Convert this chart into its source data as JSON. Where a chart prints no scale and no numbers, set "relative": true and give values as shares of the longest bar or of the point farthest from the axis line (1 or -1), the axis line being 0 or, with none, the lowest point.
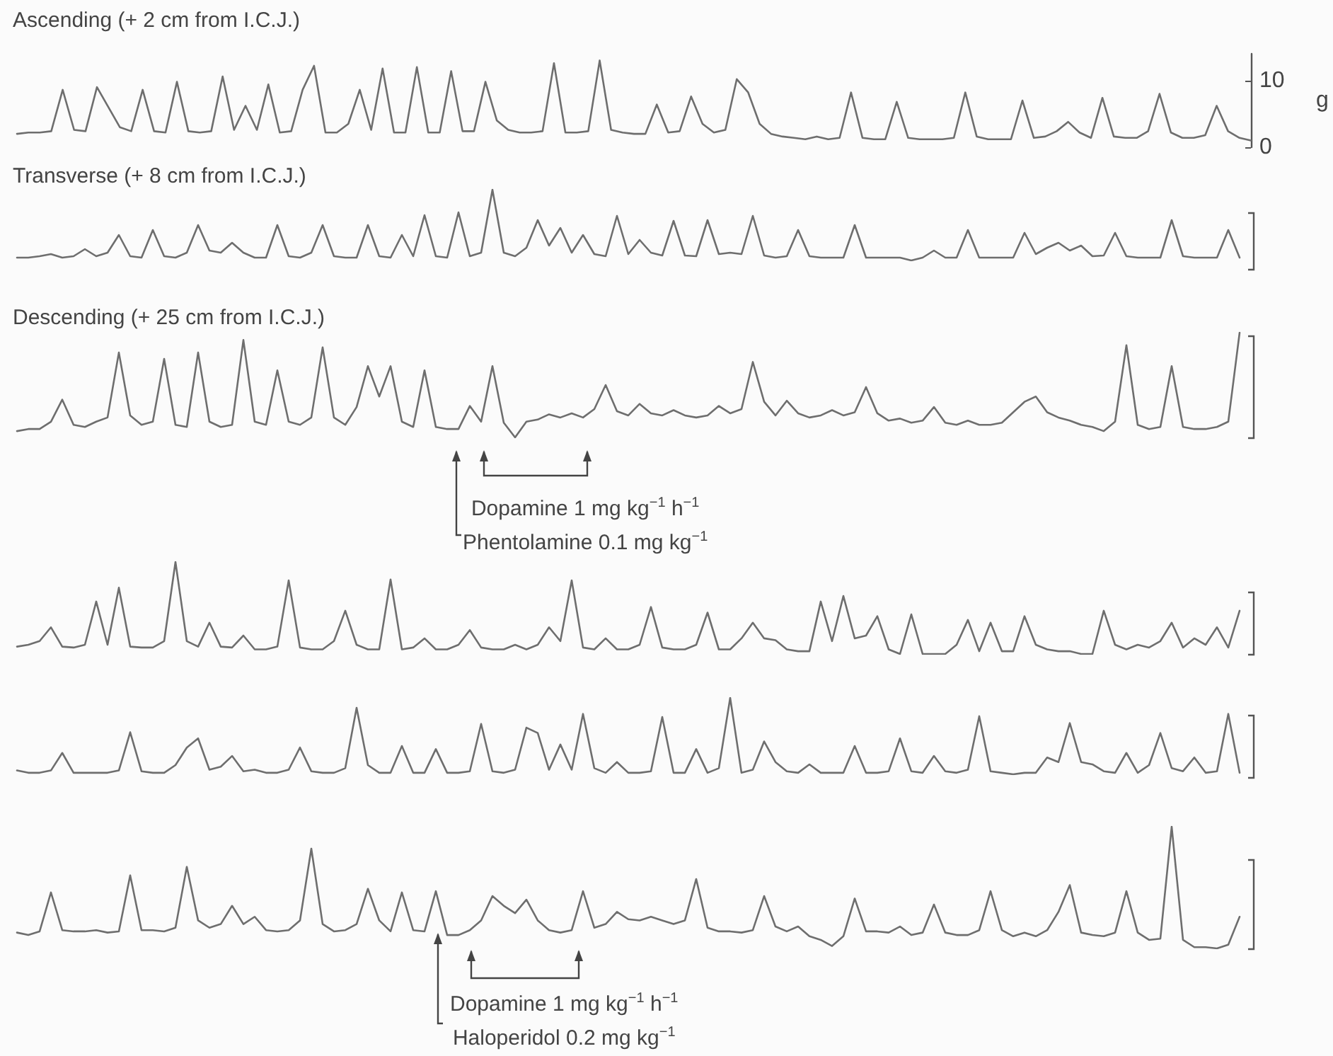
{
  "chart_data": [
    {
      "type": "line",
      "title": "Ascending (+ 2 cm from I.C.J.)",
      "ylabel": "g",
      "color": "#6e6e6e",
      "ylim": [
        0,
        14
      ],
      "yticks": [
        0,
        10
      ],
      "categories": [
        null,
        null,
        null,
        null,
        null,
        null,
        null,
        null,
        null,
        null,
        null,
        null,
        null,
        null,
        null,
        null,
        null,
        null,
        null,
        null,
        null,
        null,
        null,
        null,
        null,
        null,
        null,
        null,
        null,
        null,
        null,
        null,
        null,
        null,
        null,
        null,
        null,
        null,
        null,
        null,
        null,
        null,
        null,
        null,
        null,
        null,
        null,
        null,
        null,
        null,
        null,
        null,
        null,
        null,
        null,
        null,
        null,
        null,
        null,
        null,
        null,
        null,
        null,
        null,
        null,
        null,
        null,
        null,
        null,
        null,
        null,
        null,
        null,
        null,
        null,
        null,
        null,
        null,
        null,
        null,
        null,
        null,
        null,
        null,
        null,
        null,
        null,
        null,
        null,
        null,
        null,
        null,
        null,
        null,
        null,
        null,
        null,
        null,
        null,
        null,
        null,
        null,
        null,
        null,
        null,
        null,
        null,
        null,
        null
      ],
      "values": [
        2.0,
        2.2,
        2.2,
        2.4,
        8.6,
        2.6,
        2.4,
        9,
        6,
        3,
        2.4,
        8.6,
        2.4,
        2.2,
        9.8,
        2.4,
        2.2,
        2.4,
        10.6,
        2.6,
        6.2,
        2.6,
        9.4,
        2.2,
        2.4,
        8.6,
        12.2,
        2.2,
        2.2,
        3.5,
        8.6,
        2.6,
        11.8,
        2.2,
        2.2,
        12,
        2.2,
        2.2,
        11.4,
        2.4,
        2.4,
        9.8,
        4,
        2.6,
        2.2,
        2.2,
        2.4,
        12.6,
        2.2,
        2.2,
        2.4,
        13,
        2.6,
        2.2,
        2,
        2,
        6.4,
        2.2,
        2.4,
        7.6,
        3.5,
        2.2,
        2.6,
        10.2,
        8.2,
        3.5,
        2,
        1.6,
        1.4,
        1.2,
        1.6,
        1.2,
        1.4,
        8.2,
        1.4,
        1.2,
        1.2,
        6.8,
        1.4,
        1.2,
        1.2,
        1.2,
        1.4,
        8.2,
        1.6,
        1.2,
        1.2,
        1.2,
        7,
        1.4,
        1.6,
        2.4,
        3.8,
        2.2,
        1.4,
        7.4,
        1.6,
        1.4,
        1.4,
        2.4,
        8,
        2.2,
        1.4,
        1.4,
        1.8,
        6.2,
        2.4,
        1.4,
        1.0
      ]
    },
    {
      "type": "line",
      "title": "Transverse (+ 8 cm from I.C.J.)",
      "color": "#6e6e6e",
      "relative": true,
      "categories": [
        null,
        null,
        null,
        null,
        null,
        null,
        null,
        null,
        null,
        null,
        null,
        null,
        null,
        null,
        null,
        null,
        null,
        null,
        null,
        null,
        null,
        null,
        null,
        null,
        null,
        null,
        null,
        null,
        null,
        null,
        null,
        null,
        null,
        null,
        null,
        null,
        null,
        null,
        null,
        null,
        null,
        null,
        null,
        null,
        null,
        null,
        null,
        null,
        null,
        null,
        null,
        null,
        null,
        null,
        null,
        null,
        null,
        null,
        null,
        null,
        null,
        null,
        null,
        null,
        null,
        null,
        null,
        null,
        null,
        null,
        null,
        null,
        null,
        null,
        null,
        null,
        null,
        null,
        null,
        null,
        null,
        null,
        null,
        null,
        null,
        null,
        null,
        null,
        null,
        null,
        null,
        null,
        null,
        null,
        null,
        null,
        null,
        null,
        null,
        null,
        null,
        null,
        null,
        null,
        null,
        null,
        null,
        null,
        null
      ],
      "values": [
        0.04,
        0.04,
        0.06,
        0.09,
        0.04,
        0.06,
        0.16,
        0.06,
        0.11,
        0.36,
        0.06,
        0.04,
        0.43,
        0.06,
        0.04,
        0.11,
        0.5,
        0.14,
        0.11,
        0.25,
        0.11,
        0.04,
        0.04,
        0.5,
        0.06,
        0.04,
        0.11,
        0.5,
        0.06,
        0.04,
        0.04,
        0.5,
        0.06,
        0.04,
        0.36,
        0.06,
        0.64,
        0.06,
        0.04,
        0.68,
        0.06,
        0.11,
        1,
        0.11,
        0.06,
        0.18,
        0.57,
        0.21,
        0.46,
        0.11,
        0.36,
        0.09,
        0.06,
        0.63,
        0.09,
        0.29,
        0.11,
        0.07,
        0.56,
        0.07,
        0.06,
        0.57,
        0.09,
        0.11,
        0.09,
        0.63,
        0.07,
        0.04,
        0.06,
        0.43,
        0.06,
        0.04,
        0.04,
        0.04,
        0.5,
        0.04,
        0.04,
        0.04,
        0.04,
        0,
        0.04,
        0.14,
        0.04,
        0.04,
        0.43,
        0.04,
        0.04,
        0.04,
        0.04,
        0.39,
        0.09,
        0.18,
        0.25,
        0.14,
        0.21,
        0.06,
        0.07,
        0.39,
        0.06,
        0.04,
        0.04,
        0.04,
        0.57,
        0.06,
        0.04,
        0.04,
        0.04,
        0.43,
        0.04
      ]
    },
    {
      "type": "line",
      "title": "Descending (+ 25 cm from I.C.J.)",
      "color": "#6e6e6e",
      "relative": true,
      "annotations": [
        "Dopamine 1 mg kg$^{−1}$ h$^{−1}$",
        "Phentolamine 0.1 mg kg$^{−1}$"
      ],
      "categories": [
        null,
        null,
        null,
        null,
        null,
        null,
        null,
        null,
        null,
        null,
        null,
        null,
        null,
        null,
        null,
        null,
        null,
        null,
        null,
        null,
        null,
        null,
        null,
        null,
        null,
        null,
        null,
        null,
        null,
        null,
        null,
        null,
        null,
        null,
        null,
        null,
        null,
        null,
        null,
        null,
        null,
        null,
        null,
        null,
        null,
        null,
        null,
        null,
        null,
        null,
        null,
        null,
        null,
        null,
        null,
        null,
        null,
        null,
        null,
        null,
        null,
        null,
        null,
        null,
        null,
        null,
        null,
        null,
        null,
        null,
        null,
        null,
        null,
        null,
        null,
        null,
        null,
        null,
        null,
        null,
        null,
        null,
        null,
        null,
        null,
        null,
        null,
        null,
        null,
        null,
        null,
        null,
        null,
        null,
        null,
        null,
        null,
        null,
        null,
        null,
        null,
        null,
        null,
        null,
        null,
        null,
        null,
        null,
        null
      ],
      "values": [
        0.06,
        0.08,
        0.08,
        0.15,
        0.36,
        0.12,
        0.1,
        0.15,
        0.19,
        0.81,
        0.21,
        0.12,
        0.15,
        0.75,
        0.12,
        0.1,
        0.81,
        0.15,
        0.1,
        0.12,
        0.93,
        0.15,
        0.12,
        0.64,
        0.15,
        0.12,
        0.19,
        0.86,
        0.19,
        0.12,
        0.29,
        0.68,
        0.39,
        0.68,
        0.15,
        0.1,
        0.64,
        0.1,
        0.08,
        0.08,
        0.3,
        0.15,
        0.68,
        0.14,
        0,
        0.15,
        0.17,
        0.22,
        0.19,
        0.23,
        0.19,
        0.27,
        0.5,
        0.25,
        0.21,
        0.32,
        0.23,
        0.21,
        0.26,
        0.21,
        0.19,
        0.21,
        0.3,
        0.23,
        0.27,
        0.72,
        0.34,
        0.21,
        0.35,
        0.23,
        0.19,
        0.21,
        0.26,
        0.21,
        0.24,
        0.48,
        0.23,
        0.16,
        0.18,
        0.14,
        0.16,
        0.29,
        0.14,
        0.12,
        0.16,
        0.12,
        0.12,
        0.14,
        0.24,
        0.34,
        0.39,
        0.24,
        0.19,
        0.16,
        0.12,
        0.1,
        0.06,
        0.15,
        0.88,
        0.12,
        0.08,
        0.1,
        0.68,
        0.1,
        0.08,
        0.08,
        0.1,
        0.15,
        1
      ]
    },
    {
      "type": "line",
      "color": "#6e6e6e",
      "relative": true,
      "categories": [
        null,
        null,
        null,
        null,
        null,
        null,
        null,
        null,
        null,
        null,
        null,
        null,
        null,
        null,
        null,
        null,
        null,
        null,
        null,
        null,
        null,
        null,
        null,
        null,
        null,
        null,
        null,
        null,
        null,
        null,
        null,
        null,
        null,
        null,
        null,
        null,
        null,
        null,
        null,
        null,
        null,
        null,
        null,
        null,
        null,
        null,
        null,
        null,
        null,
        null,
        null,
        null,
        null,
        null,
        null,
        null,
        null,
        null,
        null,
        null,
        null,
        null,
        null,
        null,
        null,
        null,
        null,
        null,
        null,
        null,
        null,
        null,
        null,
        null,
        null,
        null,
        null,
        null,
        null,
        null,
        null,
        null,
        null,
        null,
        null,
        null,
        null,
        null,
        null,
        null,
        null,
        null,
        null,
        null,
        null,
        null,
        null,
        null,
        null,
        null,
        null,
        null,
        null,
        null,
        null,
        null,
        null,
        null,
        null
      ],
      "values": [
        0.08,
        0.1,
        0.14,
        0.29,
        0.08,
        0.07,
        0.1,
        0.57,
        0.1,
        0.72,
        0.08,
        0.07,
        0.07,
        0.14,
        1,
        0.14,
        0.08,
        0.34,
        0.08,
        0.07,
        0.2,
        0.05,
        0.05,
        0.08,
        0.8,
        0.07,
        0.05,
        0.05,
        0.14,
        0.47,
        0.1,
        0.05,
        0.05,
        0.81,
        0.05,
        0.07,
        0.17,
        0.05,
        0.05,
        0.1,
        0.26,
        0.07,
        0.05,
        0.05,
        0.1,
        0.05,
        0.1,
        0.29,
        0.14,
        0.8,
        0.07,
        0.05,
        0.17,
        0.05,
        0.05,
        0.1,
        0.51,
        0.07,
        0.05,
        0.05,
        0.1,
        0.45,
        0.05,
        0.05,
        0.17,
        0.34,
        0.17,
        0.15,
        0.05,
        0.03,
        0.03,
        0.57,
        0.14,
        0.63,
        0.17,
        0.2,
        0.41,
        0.05,
        0,
        0.43,
        0,
        0,
        0,
        0.1,
        0.37,
        0.03,
        0.34,
        0.03,
        0.03,
        0.41,
        0.1,
        0.05,
        0.03,
        0.03,
        0,
        0,
        0.47,
        0.1,
        0.05,
        0.1,
        0.07,
        0.14,
        0.34,
        0.07,
        0.17,
        0.1,
        0.29,
        0.07,
        0.47
      ]
    },
    {
      "type": "line",
      "color": "#6e6e6e",
      "relative": true,
      "categories": [
        null,
        null,
        null,
        null,
        null,
        null,
        null,
        null,
        null,
        null,
        null,
        null,
        null,
        null,
        null,
        null,
        null,
        null,
        null,
        null,
        null,
        null,
        null,
        null,
        null,
        null,
        null,
        null,
        null,
        null,
        null,
        null,
        null,
        null,
        null,
        null,
        null,
        null,
        null,
        null,
        null,
        null,
        null,
        null,
        null,
        null,
        null,
        null,
        null,
        null,
        null,
        null,
        null,
        null,
        null,
        null,
        null,
        null,
        null,
        null,
        null,
        null,
        null,
        null,
        null,
        null,
        null,
        null,
        null,
        null,
        null,
        null,
        null,
        null,
        null,
        null,
        null,
        null,
        null,
        null,
        null,
        null,
        null,
        null,
        null,
        null,
        null,
        null,
        null,
        null,
        null,
        null,
        null,
        null,
        null,
        null,
        null,
        null,
        null,
        null,
        null,
        null,
        null,
        null,
        null,
        null,
        null,
        null,
        null
      ],
      "values": [
        0.05,
        0.02,
        0.02,
        0.05,
        0.28,
        0.02,
        0.02,
        0.02,
        0.02,
        0.05,
        0.55,
        0.04,
        0.02,
        0.02,
        0.12,
        0.35,
        0.47,
        0.06,
        0.1,
        0.24,
        0.04,
        0.06,
        0.02,
        0.02,
        0.06,
        0.35,
        0.04,
        0.02,
        0.02,
        0.08,
        0.87,
        0.12,
        0.02,
        0.02,
        0.37,
        0.02,
        0.02,
        0.33,
        0.02,
        0.02,
        0.04,
        0.66,
        0.04,
        0.02,
        0.06,
        0.61,
        0.54,
        0.06,
        0.39,
        0.06,
        0.79,
        0.08,
        0.02,
        0.16,
        0.02,
        0.02,
        0.04,
        0.75,
        0.02,
        0.02,
        0.33,
        0.02,
        0.08,
        1,
        0.02,
        0.06,
        0.43,
        0.16,
        0.04,
        0.02,
        0.13,
        0.02,
        0.02,
        0.02,
        0.37,
        0.02,
        0.02,
        0.04,
        0.47,
        0.04,
        0.02,
        0.24,
        0.04,
        0.02,
        0.06,
        0.76,
        0.04,
        0.02,
        0,
        0.02,
        0.02,
        0.22,
        0.16,
        0.67,
        0.16,
        0.13,
        0.04,
        0.02,
        0.28,
        0.02,
        0.12,
        0.54,
        0.08,
        0.04,
        0.22,
        0.02,
        0.04,
        0.79,
        0.02
      ]
    },
    {
      "type": "line",
      "color": "#6e6e6e",
      "relative": true,
      "annotations": [
        "Dopamine 1 mg kg$^{−1}$ h$^{−1}$",
        "Haloperidol 0.2 mg kg$^{−1}$"
      ],
      "categories": [
        null,
        null,
        null,
        null,
        null,
        null,
        null,
        null,
        null,
        null,
        null,
        null,
        null,
        null,
        null,
        null,
        null,
        null,
        null,
        null,
        null,
        null,
        null,
        null,
        null,
        null,
        null,
        null,
        null,
        null,
        null,
        null,
        null,
        null,
        null,
        null,
        null,
        null,
        null,
        null,
        null,
        null,
        null,
        null,
        null,
        null,
        null,
        null,
        null,
        null,
        null,
        null,
        null,
        null,
        null,
        null,
        null,
        null,
        null,
        null,
        null,
        null,
        null,
        null,
        null,
        null,
        null,
        null,
        null,
        null,
        null,
        null,
        null,
        null,
        null,
        null,
        null,
        null,
        null,
        null,
        null,
        null,
        null,
        null,
        null,
        null,
        null,
        null,
        null,
        null,
        null,
        null,
        null,
        null,
        null,
        null,
        null,
        null,
        null,
        null,
        null,
        null,
        null,
        null,
        null,
        null,
        null,
        null,
        null
      ],
      "values": [
        0.13,
        0.11,
        0.14,
        0.46,
        0.15,
        0.14,
        0.14,
        0.15,
        0.13,
        0.14,
        0.6,
        0.15,
        0.15,
        0.14,
        0.17,
        0.67,
        0.23,
        0.17,
        0.2,
        0.35,
        0.2,
        0.26,
        0.15,
        0.14,
        0.15,
        0.23,
        0.82,
        0.2,
        0.14,
        0.15,
        0.2,
        0.49,
        0.23,
        0.14,
        0.46,
        0.15,
        0.14,
        0.47,
        0.11,
        0.11,
        0.15,
        0.23,
        0.43,
        0.35,
        0.29,
        0.4,
        0.23,
        0.15,
        0.13,
        0.15,
        0.47,
        0.17,
        0.2,
        0.3,
        0.24,
        0.23,
        0.26,
        0.23,
        0.2,
        0.23,
        0.57,
        0.17,
        0.14,
        0.14,
        0.13,
        0.15,
        0.43,
        0.18,
        0.14,
        0.18,
        0.1,
        0.07,
        0.02,
        0.1,
        0.41,
        0.14,
        0.14,
        0.13,
        0.18,
        0.11,
        0.13,
        0.36,
        0.13,
        0.11,
        0.11,
        0.15,
        0.47,
        0.15,
        0.1,
        0.13,
        0.1,
        0.15,
        0.3,
        0.52,
        0.13,
        0.11,
        0.1,
        0.13,
        0.47,
        0.13,
        0.07,
        0.08,
        1,
        0.07,
        0.01,
        0.01,
        0,
        0.03,
        0.26
      ]
    }
  ]
}
